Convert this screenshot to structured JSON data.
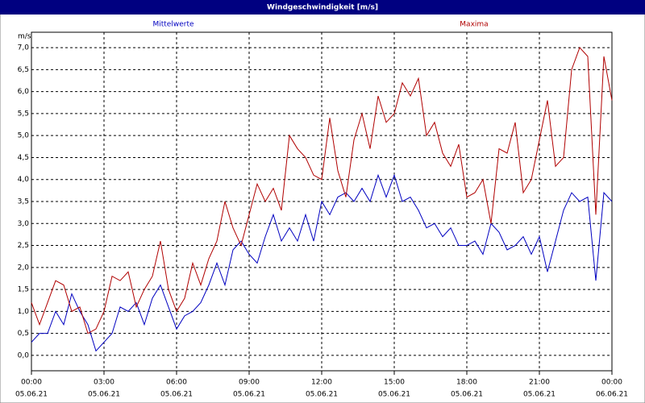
{
  "chart_data": {
    "type": "line",
    "title": "Windgeschwindigkeit [m/s]",
    "y_unit": "m/s",
    "x": [
      0,
      20,
      40,
      60,
      80,
      100,
      120,
      140,
      160,
      180,
      200,
      220,
      240,
      260,
      280,
      300,
      320,
      340,
      360,
      380,
      400,
      420,
      440,
      460,
      480,
      500,
      520,
      540,
      560,
      580,
      600,
      620,
      640,
      660,
      680,
      700,
      720,
      740,
      760,
      780,
      800,
      820,
      840,
      860,
      880,
      900,
      920,
      940,
      960,
      980,
      1000,
      1020,
      1040,
      1060,
      1080,
      1100,
      1120,
      1140,
      1160,
      1180,
      1200,
      1220,
      1240,
      1260,
      1280,
      1300,
      1320,
      1340,
      1360,
      1380,
      1400,
      1420,
      1440
    ],
    "series": [
      {
        "name": "Mittelwerte",
        "color": "#0000c0",
        "values": [
          0.3,
          0.5,
          0.5,
          1.0,
          0.7,
          1.4,
          1.0,
          0.7,
          0.1,
          0.3,
          0.5,
          1.1,
          1.0,
          1.2,
          0.7,
          1.3,
          1.6,
          1.1,
          0.6,
          0.9,
          1.0,
          1.2,
          1.6,
          2.1,
          1.6,
          2.4,
          2.6,
          2.3,
          2.1,
          2.7,
          3.2,
          2.6,
          2.9,
          2.6,
          3.2,
          2.6,
          3.5,
          3.2,
          3.6,
          3.7,
          3.5,
          3.8,
          3.5,
          4.1,
          3.6,
          4.1,
          3.5,
          3.6,
          3.3,
          2.9,
          3.0,
          2.7,
          2.9,
          2.5,
          2.5,
          2.6,
          2.3,
          3.0,
          2.8,
          2.4,
          2.5,
          2.7,
          2.3,
          2.7,
          1.9,
          2.6,
          3.3,
          3.7,
          3.5,
          3.6,
          1.7,
          3.7,
          3.5
        ]
      },
      {
        "name": "Maxima",
        "color": "#b00000",
        "values": [
          1.2,
          0.7,
          1.2,
          1.7,
          1.6,
          1.0,
          1.1,
          0.5,
          0.6,
          1.0,
          1.8,
          1.7,
          1.9,
          1.1,
          1.5,
          1.8,
          2.6,
          1.5,
          1.0,
          1.3,
          2.1,
          1.6,
          2.2,
          2.6,
          3.5,
          2.9,
          2.5,
          3.2,
          3.9,
          3.5,
          3.8,
          3.3,
          5.0,
          4.7,
          4.5,
          4.1,
          4.0,
          5.4,
          4.2,
          3.6,
          4.9,
          5.5,
          4.7,
          5.9,
          5.3,
          5.5,
          6.2,
          5.9,
          6.3,
          5.0,
          5.3,
          4.6,
          4.3,
          4.8,
          3.6,
          3.7,
          4.0,
          3.0,
          4.7,
          4.6,
          5.3,
          3.7,
          4.0,
          4.9,
          5.8,
          4.3,
          4.5,
          6.5,
          7.0,
          6.8,
          3.2,
          6.8,
          5.8
        ]
      }
    ],
    "xlim": [
      0,
      1440
    ],
    "xticks": [
      {
        "value": 0,
        "label": "00:00",
        "date": "05.06.21"
      },
      {
        "value": 180,
        "label": "03:00",
        "date": "05.06.21"
      },
      {
        "value": 360,
        "label": "06:00",
        "date": "05.06.21"
      },
      {
        "value": 540,
        "label": "09:00",
        "date": "05.06.21"
      },
      {
        "value": 720,
        "label": "12:00",
        "date": "05.06.21"
      },
      {
        "value": 900,
        "label": "15:00",
        "date": "05.06.21"
      },
      {
        "value": 1080,
        "label": "18:00",
        "date": "05.06.21"
      },
      {
        "value": 1260,
        "label": "21:00",
        "date": "05.06.21"
      },
      {
        "value": 1440,
        "label": "00:00",
        "date": "06.06.21"
      }
    ],
    "ylim": [
      -0.35,
      7.35
    ],
    "yticks": [
      {
        "value": 0,
        "label": "0,0"
      },
      {
        "value": 0.5,
        "label": "0,5"
      },
      {
        "value": 1,
        "label": "1,0"
      },
      {
        "value": 1.5,
        "label": "1,5"
      },
      {
        "value": 2,
        "label": "2,0"
      },
      {
        "value": 2.5,
        "label": "2,5"
      },
      {
        "value": 3,
        "label": "3,0"
      },
      {
        "value": 3.5,
        "label": "3,5"
      },
      {
        "value": 4,
        "label": "4,0"
      },
      {
        "value": 4.5,
        "label": "4,5"
      },
      {
        "value": 5,
        "label": "5,0"
      },
      {
        "value": 5.5,
        "label": "5,5"
      },
      {
        "value": 6,
        "label": "6,0"
      },
      {
        "value": 6.5,
        "label": "6,5"
      },
      {
        "value": 7,
        "label": "7,0"
      }
    ],
    "grid": true
  }
}
